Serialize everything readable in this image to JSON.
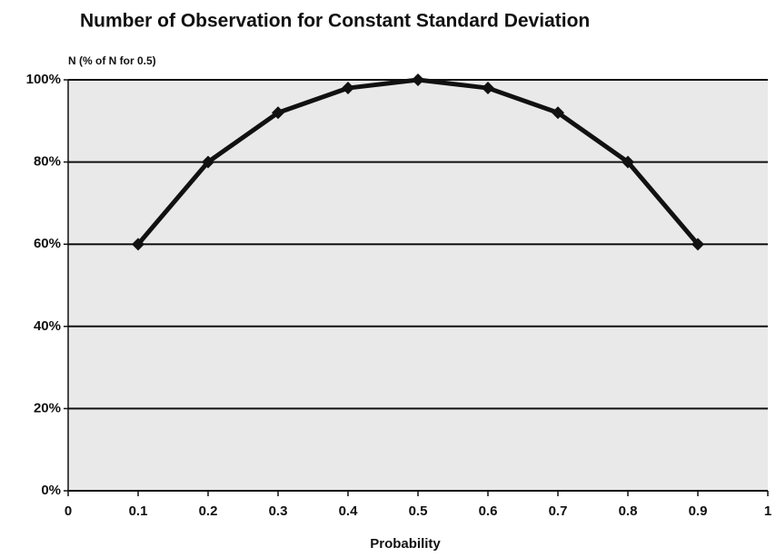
{
  "chart_data": {
    "type": "line",
    "title": "Number of Observation for Constant Standard Deviation",
    "y_axis_label": "N (% of N for 0.5)",
    "x_axis_label": "Probability",
    "x": [
      0.1,
      0.2,
      0.3,
      0.4,
      0.5,
      0.6,
      0.7,
      0.8,
      0.9
    ],
    "series": [
      {
        "color": "#111111",
        "values": [
          60,
          80,
          92,
          98,
          100,
          98,
          92,
          80,
          60
        ]
      }
    ],
    "xlim": [
      0,
      1
    ],
    "xticks": [
      0,
      0.1,
      0.2,
      0.3,
      0.4,
      0.5,
      0.6,
      0.7,
      0.8,
      0.9,
      1
    ],
    "ylim": [
      0,
      100
    ],
    "yticks": [
      {
        "value": 0,
        "label": "0%"
      },
      {
        "value": 20,
        "label": "20%"
      },
      {
        "value": 40,
        "label": "40%"
      },
      {
        "value": 60,
        "label": "60%"
      },
      {
        "value": 80,
        "label": "80%"
      },
      {
        "value": 100,
        "label": "100%"
      }
    ],
    "grid": true
  }
}
